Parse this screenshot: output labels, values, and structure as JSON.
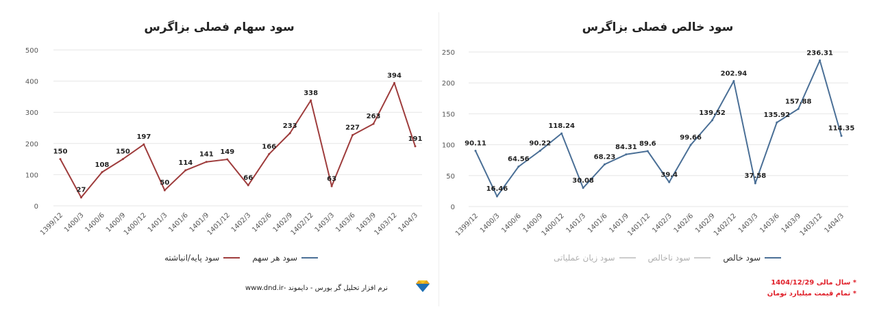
{
  "left_chart": {
    "title": "سود سهام فصلی بزاگرس",
    "legend": [
      {
        "label": "سود هر سهم",
        "color": "#4a6f96"
      },
      {
        "label": "سود پایه/انباشته",
        "color": "#9e3c3c"
      }
    ],
    "footer": "نرم افزار تحلیل گر بورس - دایموند -www.dnd.ir"
  },
  "right_chart": {
    "title": "سود خالص فصلی بزاگرس",
    "legend": [
      {
        "label": "سود خالص",
        "color": "#4a6f96",
        "faded": false
      },
      {
        "label": "سود ناخالص",
        "color": "#cccccc",
        "faded": true
      },
      {
        "label": "سود زیان عملیاتی",
        "color": "#cccccc",
        "faded": true
      }
    ],
    "notes": [
      "* سال مالی 1404/12/29",
      "* تمام قیمت میلیارد تومان"
    ]
  },
  "chart_data": [
    {
      "type": "line",
      "title": "سود سهام فصلی بزاگرس",
      "categories": [
        "1399/12",
        "1400/3",
        "1400/6",
        "1400/9",
        "1400/12",
        "1401/3",
        "1401/6",
        "1401/9",
        "1401/12",
        "1402/3",
        "1402/6",
        "1402/9",
        "1402/12",
        "1403/3",
        "1403/6",
        "1403/9",
        "1403/12",
        "1404/3"
      ],
      "series": [
        {
          "name": "سود پایه/انباشته",
          "color": "#9e3c3c",
          "values": [
            150,
            27,
            108,
            150,
            197,
            50,
            114,
            141,
            149,
            66,
            166,
            233,
            338,
            63,
            227,
            263,
            394,
            191
          ]
        }
      ],
      "ylim": [
        0,
        500
      ],
      "yticks": [
        0,
        100,
        200,
        300,
        400,
        500
      ],
      "grid": true,
      "legend_position": "bottom"
    },
    {
      "type": "line",
      "title": "سود خالص فصلی بزاگرس",
      "categories": [
        "1399/12",
        "1400/3",
        "1400/6",
        "1400/9",
        "1400/12",
        "1401/3",
        "1401/6",
        "1401/9",
        "1401/12",
        "1402/3",
        "1402/6",
        "1402/9",
        "1402/12",
        "1403/3",
        "1403/6",
        "1403/9",
        "1403/12",
        "1404/3"
      ],
      "series": [
        {
          "name": "سود خالص",
          "color": "#4a6f96",
          "values": [
            90.11,
            16.46,
            64.56,
            90.22,
            118.24,
            30.08,
            68.23,
            84.31,
            89.6,
            39.4,
            99.66,
            139.52,
            202.94,
            37.58,
            135.92,
            157.88,
            236.31,
            114.35
          ]
        }
      ],
      "ylim": [
        0,
        250
      ],
      "yticks": [
        0,
        50,
        100,
        150,
        200,
        250
      ],
      "grid": true,
      "legend_position": "bottom"
    }
  ]
}
